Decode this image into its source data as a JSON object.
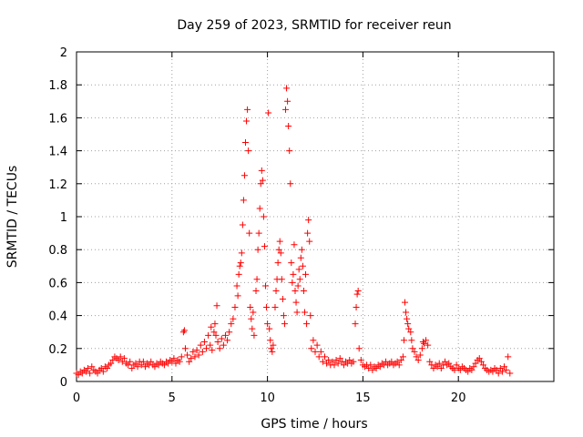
{
  "chart_data": {
    "type": "scatter",
    "title": "Day 259 of 2023, SRMTID for receiver reun",
    "xlabel": "GPS time / hours",
    "ylabel": "SRMTID / TECUs",
    "xlim": [
      0,
      25
    ],
    "ylim": [
      0,
      2
    ],
    "xticks": [
      0,
      5,
      10,
      15,
      20
    ],
    "yticks": [
      0,
      0.2,
      0.4,
      0.6,
      0.8,
      1,
      1.2,
      1.4,
      1.6,
      1.8,
      2
    ],
    "ytick_labels": [
      "0",
      "0.2",
      "0.4",
      "0.6",
      "0.8",
      "1",
      "1.2",
      "1.4",
      "1.6",
      "1.8",
      "2"
    ],
    "grid": true,
    "marker": "+",
    "series": [
      {
        "name": "SRMTID",
        "color": "#ff0000",
        "points": [
          [
            0.0,
            0.05
          ],
          [
            0.1,
            0.04
          ],
          [
            0.2,
            0.06
          ],
          [
            0.3,
            0.05
          ],
          [
            0.4,
            0.07
          ],
          [
            0.5,
            0.06
          ],
          [
            0.6,
            0.08
          ],
          [
            0.7,
            0.05
          ],
          [
            0.8,
            0.09
          ],
          [
            0.9,
            0.07
          ],
          [
            1.0,
            0.06
          ],
          [
            1.1,
            0.05
          ],
          [
            1.2,
            0.07
          ],
          [
            1.3,
            0.08
          ],
          [
            1.4,
            0.06
          ],
          [
            1.5,
            0.09
          ],
          [
            1.6,
            0.08
          ],
          [
            1.7,
            0.1
          ],
          [
            1.8,
            0.11
          ],
          [
            1.9,
            0.13
          ],
          [
            2.0,
            0.15
          ],
          [
            2.1,
            0.14
          ],
          [
            2.2,
            0.13
          ],
          [
            2.3,
            0.15
          ],
          [
            2.4,
            0.12
          ],
          [
            2.5,
            0.14
          ],
          [
            2.6,
            0.11
          ],
          [
            2.7,
            0.1
          ],
          [
            2.8,
            0.12
          ],
          [
            2.9,
            0.08
          ],
          [
            3.0,
            0.1
          ],
          [
            3.1,
            0.11
          ],
          [
            3.2,
            0.09
          ],
          [
            3.3,
            0.12
          ],
          [
            3.4,
            0.1
          ],
          [
            3.5,
            0.12
          ],
          [
            3.6,
            0.09
          ],
          [
            3.7,
            0.11
          ],
          [
            3.8,
            0.1
          ],
          [
            3.9,
            0.12
          ],
          [
            4.0,
            0.1
          ],
          [
            4.1,
            0.09
          ],
          [
            4.2,
            0.11
          ],
          [
            4.3,
            0.1
          ],
          [
            4.4,
            0.12
          ],
          [
            4.5,
            0.11
          ],
          [
            4.6,
            0.1
          ],
          [
            4.7,
            0.12
          ],
          [
            4.8,
            0.11
          ],
          [
            4.9,
            0.13
          ],
          [
            5.0,
            0.12
          ],
          [
            5.1,
            0.14
          ],
          [
            5.2,
            0.11
          ],
          [
            5.3,
            0.13
          ],
          [
            5.4,
            0.12
          ],
          [
            5.5,
            0.15
          ],
          [
            5.6,
            0.3
          ],
          [
            5.65,
            0.31
          ],
          [
            5.7,
            0.2
          ],
          [
            5.8,
            0.16
          ],
          [
            5.9,
            0.12
          ],
          [
            6.0,
            0.14
          ],
          [
            6.1,
            0.18
          ],
          [
            6.2,
            0.15
          ],
          [
            6.3,
            0.19
          ],
          [
            6.4,
            0.16
          ],
          [
            6.5,
            0.22
          ],
          [
            6.6,
            0.18
          ],
          [
            6.7,
            0.24
          ],
          [
            6.8,
            0.2
          ],
          [
            6.9,
            0.28
          ],
          [
            7.0,
            0.22
          ],
          [
            7.05,
            0.33
          ],
          [
            7.1,
            0.19
          ],
          [
            7.2,
            0.3
          ],
          [
            7.25,
            0.35
          ],
          [
            7.3,
            0.28
          ],
          [
            7.35,
            0.46
          ],
          [
            7.4,
            0.24
          ],
          [
            7.5,
            0.2
          ],
          [
            7.6,
            0.26
          ],
          [
            7.7,
            0.22
          ],
          [
            7.8,
            0.28
          ],
          [
            7.9,
            0.25
          ],
          [
            8.0,
            0.3
          ],
          [
            8.1,
            0.35
          ],
          [
            8.2,
            0.38
          ],
          [
            8.3,
            0.45
          ],
          [
            8.4,
            0.58
          ],
          [
            8.45,
            0.52
          ],
          [
            8.5,
            0.65
          ],
          [
            8.55,
            0.7
          ],
          [
            8.6,
            0.72
          ],
          [
            8.65,
            0.78
          ],
          [
            8.7,
            0.95
          ],
          [
            8.75,
            1.1
          ],
          [
            8.8,
            1.25
          ],
          [
            8.85,
            1.45
          ],
          [
            8.9,
            1.58
          ],
          [
            8.95,
            1.65
          ],
          [
            9.0,
            1.4
          ],
          [
            9.05,
            0.9
          ],
          [
            9.1,
            0.45
          ],
          [
            9.15,
            0.38
          ],
          [
            9.2,
            0.32
          ],
          [
            9.25,
            0.42
          ],
          [
            9.3,
            0.28
          ],
          [
            9.4,
            0.55
          ],
          [
            9.45,
            0.62
          ],
          [
            9.5,
            0.8
          ],
          [
            9.55,
            0.9
          ],
          [
            9.6,
            1.05
          ],
          [
            9.65,
            1.2
          ],
          [
            9.7,
            1.28
          ],
          [
            9.75,
            1.22
          ],
          [
            9.8,
            1.0
          ],
          [
            9.85,
            0.82
          ],
          [
            9.9,
            0.58
          ],
          [
            9.95,
            0.45
          ],
          [
            10.0,
            0.35
          ],
          [
            10.05,
            1.63
          ],
          [
            10.1,
            0.32
          ],
          [
            10.15,
            0.25
          ],
          [
            10.2,
            0.2
          ],
          [
            10.25,
            0.18
          ],
          [
            10.3,
            0.22
          ],
          [
            10.4,
            0.45
          ],
          [
            10.45,
            0.55
          ],
          [
            10.5,
            0.62
          ],
          [
            10.55,
            0.72
          ],
          [
            10.6,
            0.8
          ],
          [
            10.65,
            0.85
          ],
          [
            10.7,
            0.78
          ],
          [
            10.75,
            0.62
          ],
          [
            10.8,
            0.5
          ],
          [
            10.85,
            0.4
          ],
          [
            10.9,
            0.35
          ],
          [
            10.95,
            1.65
          ],
          [
            11.0,
            1.78
          ],
          [
            11.05,
            1.7
          ],
          [
            11.1,
            1.55
          ],
          [
            11.15,
            1.4
          ],
          [
            11.2,
            1.2
          ],
          [
            11.25,
            0.72
          ],
          [
            11.3,
            0.6
          ],
          [
            11.35,
            0.65
          ],
          [
            11.4,
            0.83
          ],
          [
            11.45,
            0.55
          ],
          [
            11.5,
            0.48
          ],
          [
            11.55,
            0.42
          ],
          [
            11.6,
            0.58
          ],
          [
            11.65,
            0.68
          ],
          [
            11.7,
            0.62
          ],
          [
            11.75,
            0.75
          ],
          [
            11.8,
            0.8
          ],
          [
            11.85,
            0.7
          ],
          [
            11.9,
            0.55
          ],
          [
            11.95,
            0.42
          ],
          [
            12.0,
            0.65
          ],
          [
            12.05,
            0.35
          ],
          [
            12.1,
            0.9
          ],
          [
            12.15,
            0.98
          ],
          [
            12.2,
            0.85
          ],
          [
            12.25,
            0.4
          ],
          [
            12.3,
            0.2
          ],
          [
            12.4,
            0.25
          ],
          [
            12.5,
            0.18
          ],
          [
            12.6,
            0.22
          ],
          [
            12.7,
            0.15
          ],
          [
            12.8,
            0.18
          ],
          [
            12.9,
            0.12
          ],
          [
            13.0,
            0.15
          ],
          [
            13.1,
            0.11
          ],
          [
            13.2,
            0.13
          ],
          [
            13.3,
            0.1
          ],
          [
            13.4,
            0.12
          ],
          [
            13.5,
            0.1
          ],
          [
            13.6,
            0.13
          ],
          [
            13.7,
            0.11
          ],
          [
            13.8,
            0.14
          ],
          [
            13.9,
            0.12
          ],
          [
            14.0,
            0.1
          ],
          [
            14.1,
            0.12
          ],
          [
            14.2,
            0.11
          ],
          [
            14.3,
            0.13
          ],
          [
            14.4,
            0.11
          ],
          [
            14.5,
            0.12
          ],
          [
            14.6,
            0.35
          ],
          [
            14.65,
            0.45
          ],
          [
            14.7,
            0.53
          ],
          [
            14.75,
            0.55
          ],
          [
            14.8,
            0.2
          ],
          [
            14.9,
            0.13
          ],
          [
            15.0,
            0.1
          ],
          [
            15.1,
            0.09
          ],
          [
            15.2,
            0.1
          ],
          [
            15.3,
            0.08
          ],
          [
            15.4,
            0.1
          ],
          [
            15.5,
            0.07
          ],
          [
            15.6,
            0.09
          ],
          [
            15.7,
            0.08
          ],
          [
            15.8,
            0.1
          ],
          [
            15.9,
            0.09
          ],
          [
            16.0,
            0.11
          ],
          [
            16.1,
            0.1
          ],
          [
            16.2,
            0.12
          ],
          [
            16.3,
            0.1
          ],
          [
            16.4,
            0.11
          ],
          [
            16.5,
            0.12
          ],
          [
            16.6,
            0.1
          ],
          [
            16.7,
            0.11
          ],
          [
            16.8,
            0.12
          ],
          [
            16.9,
            0.1
          ],
          [
            17.0,
            0.13
          ],
          [
            17.1,
            0.15
          ],
          [
            17.15,
            0.25
          ],
          [
            17.2,
            0.48
          ],
          [
            17.25,
            0.42
          ],
          [
            17.3,
            0.38
          ],
          [
            17.35,
            0.35
          ],
          [
            17.4,
            0.32
          ],
          [
            17.5,
            0.3
          ],
          [
            17.55,
            0.25
          ],
          [
            17.6,
            0.2
          ],
          [
            17.7,
            0.18
          ],
          [
            17.8,
            0.15
          ],
          [
            17.9,
            0.13
          ],
          [
            18.0,
            0.16
          ],
          [
            18.1,
            0.2
          ],
          [
            18.15,
            0.24
          ],
          [
            18.2,
            0.23
          ],
          [
            18.3,
            0.25
          ],
          [
            18.4,
            0.22
          ],
          [
            18.5,
            0.12
          ],
          [
            18.6,
            0.1
          ],
          [
            18.7,
            0.08
          ],
          [
            18.8,
            0.1
          ],
          [
            18.9,
            0.09
          ],
          [
            19.0,
            0.11
          ],
          [
            19.1,
            0.08
          ],
          [
            19.2,
            0.1
          ],
          [
            19.3,
            0.12
          ],
          [
            19.4,
            0.1
          ],
          [
            19.5,
            0.11
          ],
          [
            19.6,
            0.09
          ],
          [
            19.7,
            0.08
          ],
          [
            19.8,
            0.07
          ],
          [
            19.9,
            0.1
          ],
          [
            20.0,
            0.08
          ],
          [
            20.1,
            0.07
          ],
          [
            20.2,
            0.09
          ],
          [
            20.3,
            0.08
          ],
          [
            20.4,
            0.07
          ],
          [
            20.5,
            0.06
          ],
          [
            20.6,
            0.08
          ],
          [
            20.7,
            0.07
          ],
          [
            20.8,
            0.09
          ],
          [
            20.9,
            0.11
          ],
          [
            21.0,
            0.13
          ],
          [
            21.1,
            0.14
          ],
          [
            21.2,
            0.12
          ],
          [
            21.3,
            0.1
          ],
          [
            21.4,
            0.08
          ],
          [
            21.5,
            0.07
          ],
          [
            21.6,
            0.06
          ],
          [
            21.7,
            0.07
          ],
          [
            21.8,
            0.06
          ],
          [
            21.9,
            0.08
          ],
          [
            22.0,
            0.07
          ],
          [
            22.1,
            0.05
          ],
          [
            22.2,
            0.08
          ],
          [
            22.3,
            0.06
          ],
          [
            22.4,
            0.09
          ],
          [
            22.5,
            0.07
          ],
          [
            22.6,
            0.15
          ],
          [
            22.7,
            0.05
          ]
        ]
      }
    ]
  }
}
